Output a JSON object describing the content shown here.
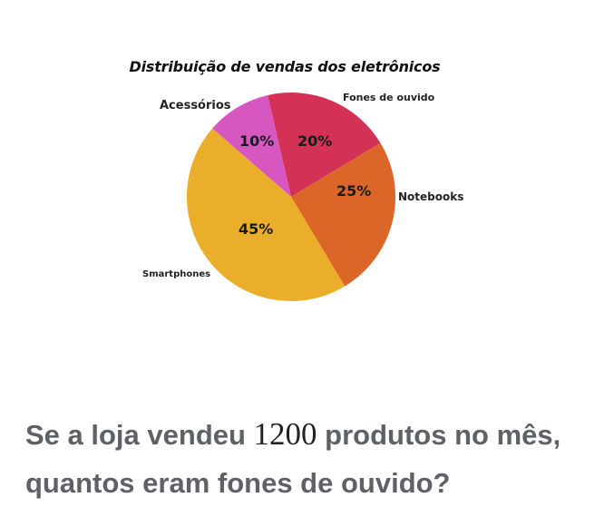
{
  "chart_data": {
    "type": "pie",
    "title": "Distribuição de vendas dos eletrônicos",
    "categories": [
      "Fones de ouvido",
      "Notebooks",
      "Smartphones",
      "Acessórios"
    ],
    "values": [
      20,
      25,
      45,
      10
    ],
    "labels": [
      "20%",
      "25%",
      "45%",
      "10%"
    ],
    "colors": [
      "#d43156",
      "#dc6628",
      "#ebae2b",
      "#d657c0"
    ],
    "legend": "none (labels placed beside slices)"
  },
  "question": {
    "before": "Se a loja vendeu ",
    "number": "1200",
    "after": " produtos no mês, quantos eram fones de ouvido?"
  }
}
